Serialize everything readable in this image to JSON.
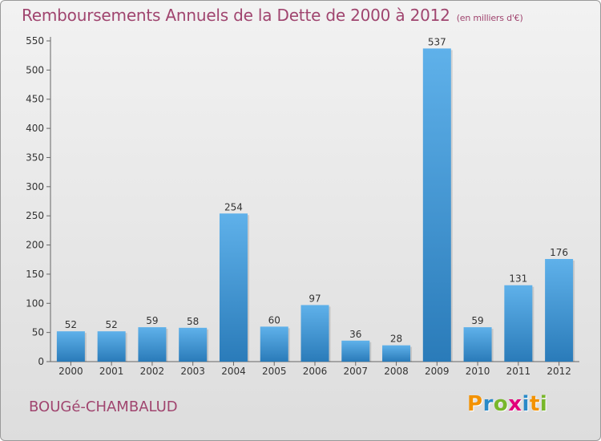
{
  "page": {
    "title": "Remboursements Annuels de la Dette de 2000 à 2012",
    "unit": "(en milliers d'€)",
    "commune": "BOUGé-CHAMBALUD",
    "logo": "Proxiti",
    "logo_letters": [
      "P",
      "r",
      "o",
      "x",
      "i",
      "t",
      "i"
    ],
    "logo_colors": [
      "#f39200",
      "#2a8ac8",
      "#78b72a",
      "#e2007a",
      "#2a8ac8",
      "#f39200",
      "#78b72a"
    ]
  },
  "chart_data": {
    "type": "bar",
    "title": "Remboursements Annuels de la Dette de 2000 à 2012",
    "xlabel": "",
    "ylabel": "",
    "categories": [
      "2000",
      "2001",
      "2002",
      "2003",
      "2004",
      "2005",
      "2006",
      "2007",
      "2008",
      "2009",
      "2010",
      "2011",
      "2012"
    ],
    "values": [
      52,
      52,
      59,
      58,
      254,
      60,
      97,
      36,
      28,
      537,
      59,
      131,
      176
    ],
    "ylim": [
      0,
      550
    ],
    "yticks": [
      0,
      50,
      100,
      150,
      200,
      250,
      300,
      350,
      400,
      450,
      500,
      550
    ],
    "grid": false,
    "legend": "none",
    "bar_color_top": "#5fb1ea",
    "bar_color_bottom": "#2a7bb9"
  }
}
